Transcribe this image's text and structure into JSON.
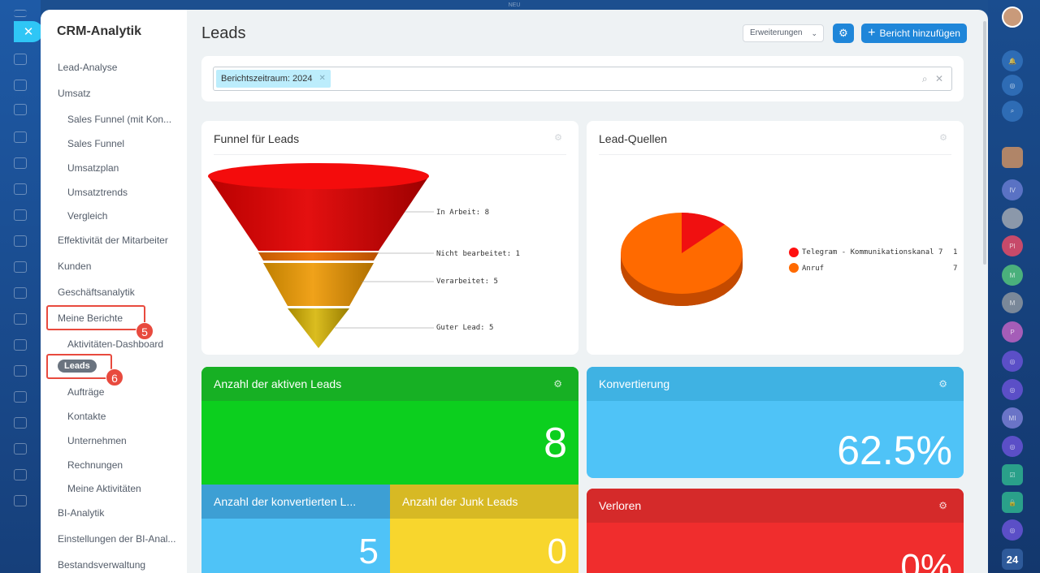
{
  "header_strip": "NEU",
  "sidebar": {
    "title": "CRM-Analytik",
    "items": [
      {
        "label": "Lead-Analyse"
      },
      {
        "label": "Umsatz"
      },
      {
        "label": "Sales Funnel (mit Kon..."
      },
      {
        "label": "Sales Funnel"
      },
      {
        "label": "Umsatzplan"
      },
      {
        "label": "Umsatztrends"
      },
      {
        "label": "Vergleich"
      },
      {
        "label": "Effektivität der Mitarbeiter"
      },
      {
        "label": "Kunden"
      },
      {
        "label": "Geschäftsanalytik"
      },
      {
        "label": "Meine Berichte"
      },
      {
        "label": "Aktivitäten-Dashboard"
      },
      {
        "label": "Leads"
      },
      {
        "label": "Aufträge"
      },
      {
        "label": "Kontakte"
      },
      {
        "label": "Unternehmen"
      },
      {
        "label": "Rechnungen"
      },
      {
        "label": "Meine Aktivitäten"
      },
      {
        "label": "BI-Analytik"
      },
      {
        "label": "Einstellungen der BI-Anal..."
      },
      {
        "label": "Bestandsverwaltung"
      }
    ],
    "step_badges": [
      "5",
      "6"
    ]
  },
  "page": {
    "title": "Leads",
    "extensions_label": "Erweiterungen",
    "add_report_label": "Bericht hinzufügen"
  },
  "filter": {
    "tag": "Berichtszeitraum: 2024"
  },
  "funnel_card": {
    "title": "Funnel für Leads",
    "labels": [
      "In Arbeit: 8",
      "Nicht bearbeitet: 1",
      "Verarbeitet: 5",
      "Guter Lead: 5"
    ]
  },
  "sources_card": {
    "title": "Lead-Quellen",
    "legend": [
      {
        "name": "Telegram - Kommunikationskanal 7",
        "value": "1",
        "color": "#ff0000"
      },
      {
        "name": "Anruf",
        "value": "7",
        "color": "#ff6a00"
      }
    ]
  },
  "tiles": {
    "active": {
      "title": "Anzahl der aktiven Leads",
      "value": "8"
    },
    "conversion": {
      "title": "Konvertierung",
      "value": "62.5%"
    },
    "converted": {
      "title": "Anzahl der konvertierten L...",
      "value": "5"
    },
    "junk": {
      "title": "Anzahl der Junk Leads",
      "value": "0"
    },
    "lost": {
      "title": "Verloren",
      "value": "0%"
    }
  },
  "right_rail": {
    "avatars": [
      "IV",
      "PI",
      "M",
      "M",
      "P",
      "MI"
    ],
    "bottom_label": "24"
  },
  "colors": {
    "accent": "#1f86d9",
    "green": "#0ccf1e",
    "blue": "#4fc3f7",
    "yellow": "#f8d62d",
    "red": "#f02d2d",
    "highlight": "#e84a3e"
  }
}
